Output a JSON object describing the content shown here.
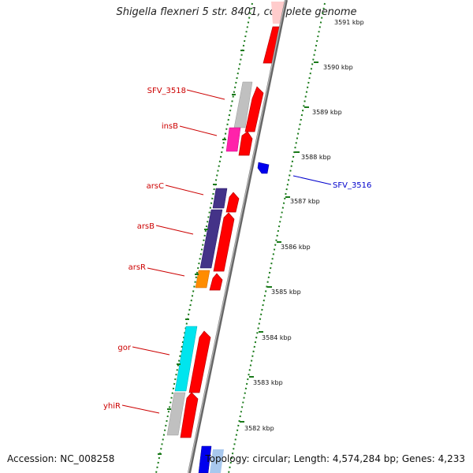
{
  "title": "Shigella flexneri 5 str. 8401, complete genome",
  "accession": "Accession: NC_008258",
  "topology": "Topology: circular; Length: 4,574,284 bp; Genes: 4,233",
  "colors": {
    "label_red": "#cc0000",
    "label_blue": "#0000cc",
    "tick_green": "#1a7a1a"
  },
  "ticks": [
    "3591 kbp",
    "3590 kbp",
    "3589 kbp",
    "3588 kbp",
    "3587 kbp",
    "3586 kbp",
    "3585 kbp",
    "3584 kbp",
    "3583 kbp",
    "3582 kbp"
  ],
  "genes": [
    {
      "name": "SFV_3518",
      "color": "#cc0000"
    },
    {
      "name": "insB",
      "color": "#cc0000"
    },
    {
      "name": "arsC",
      "color": "#cc0000"
    },
    {
      "name": "arsB",
      "color": "#cc0000"
    },
    {
      "name": "arsR",
      "color": "#cc0000"
    },
    {
      "name": "gor",
      "color": "#cc0000"
    },
    {
      "name": "yhiR",
      "color": "#cc0000"
    },
    {
      "name": "SFV_3516",
      "color": "#0000cc"
    }
  ]
}
